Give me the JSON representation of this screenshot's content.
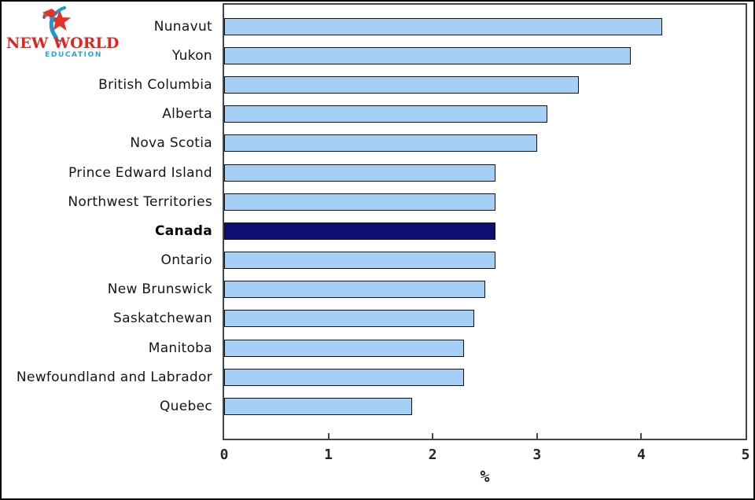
{
  "logo": {
    "line1": "NEW WORLD",
    "line2": "EDUCATION",
    "colors": {
      "red": "#e0261f",
      "blue": "#28a3dc",
      "person_blue": "#1e96d2"
    }
  },
  "chart_data": {
    "type": "bar",
    "orientation": "horizontal",
    "categories": [
      "Nunavut",
      "Yukon",
      "British Columbia",
      "Alberta",
      "Nova Scotia",
      "Prince Edward Island",
      "Northwest Territories",
      "Canada",
      "Ontario",
      "New Brunswick",
      "Saskatchewan",
      "Manitoba",
      "Newfoundland and Labrador",
      "Quebec"
    ],
    "values": [
      4.2,
      3.9,
      3.4,
      3.1,
      3.0,
      2.6,
      2.6,
      2.6,
      2.6,
      2.5,
      2.4,
      2.3,
      2.3,
      1.8
    ],
    "emphasized_category": "Canada",
    "xlabel": "%",
    "xlim": [
      0,
      5
    ],
    "xticks": [
      0,
      1,
      2,
      3,
      4,
      5
    ],
    "grid": false,
    "legend_position": "none",
    "colors": {
      "bar_fill": "#a5cff7",
      "bar_border": "#10151a",
      "emphasis_fill": "#0e0e74",
      "frame": "#454545"
    }
  }
}
